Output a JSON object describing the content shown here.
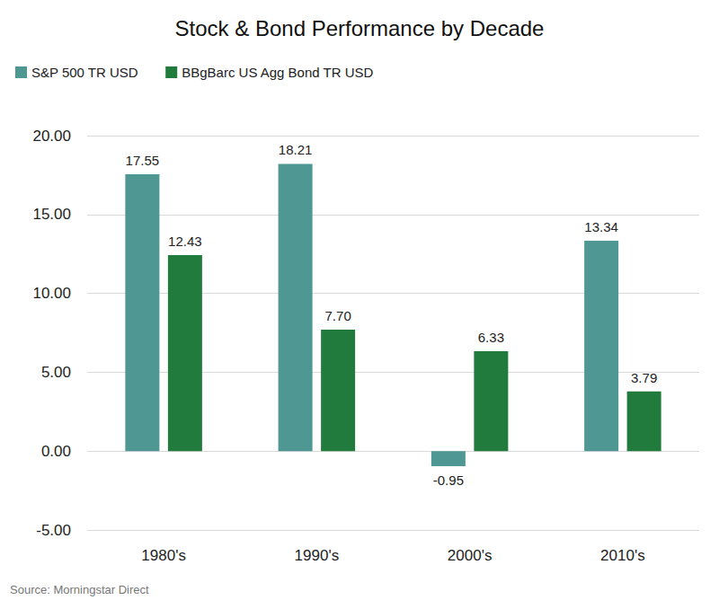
{
  "chart_data": {
    "type": "bar",
    "title": "Stock & Bond Performance by Decade",
    "source": "Source: Morningstar Direct",
    "categories": [
      "1980's",
      "1990's",
      "2000's",
      "2010's"
    ],
    "series": [
      {
        "name": "S&P 500 TR USD",
        "color": "#4e9792",
        "values": [
          17.55,
          18.21,
          -0.95,
          13.34
        ],
        "value_labels": [
          "17.55",
          "18.21",
          "-0.95",
          "13.34"
        ]
      },
      {
        "name": "BBgBarc US Agg Bond TR USD",
        "color": "#217b3d",
        "values": [
          12.43,
          7.7,
          6.33,
          3.79
        ],
        "value_labels": [
          "12.43",
          "7.70",
          "6.33",
          "3.79"
        ]
      }
    ],
    "ylim": [
      -5,
      20
    ],
    "yticks": [
      {
        "value": -5,
        "label": "-5.00"
      },
      {
        "value": 0,
        "label": "0.00"
      },
      {
        "value": 5,
        "label": "5.00"
      },
      {
        "value": 10,
        "label": "10.00"
      },
      {
        "value": 15,
        "label": "15.00"
      },
      {
        "value": 20,
        "label": "20.00"
      }
    ],
    "grid": true,
    "legend": "top-left",
    "data_labels": true
  }
}
